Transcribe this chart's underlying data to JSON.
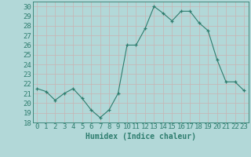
{
  "x": [
    0,
    1,
    2,
    3,
    4,
    5,
    6,
    7,
    8,
    9,
    10,
    11,
    12,
    13,
    14,
    15,
    16,
    17,
    18,
    19,
    20,
    21,
    22,
    23
  ],
  "y": [
    21.5,
    21.2,
    20.3,
    21.0,
    21.5,
    20.5,
    19.3,
    18.5,
    19.3,
    21.0,
    26.0,
    26.0,
    27.7,
    30.0,
    29.3,
    28.5,
    29.5,
    29.5,
    28.3,
    27.5,
    24.5,
    22.2,
    22.2,
    21.3
  ],
  "xlabel": "Humidex (Indice chaleur)",
  "ylim": [
    18,
    30.5
  ],
  "xlim": [
    -0.5,
    23.5
  ],
  "yticks": [
    18,
    19,
    20,
    21,
    22,
    23,
    24,
    25,
    26,
    27,
    28,
    29,
    30
  ],
  "xticks": [
    0,
    1,
    2,
    3,
    4,
    5,
    6,
    7,
    8,
    9,
    10,
    11,
    12,
    13,
    14,
    15,
    16,
    17,
    18,
    19,
    20,
    21,
    22,
    23
  ],
  "line_color": "#2e7d6e",
  "marker_color": "#2e7d6e",
  "bg_color": "#b2d8d8",
  "grid_color": "#c8b4b4",
  "text_color": "#2e7d6e",
  "xlabel_fontsize": 7,
  "tick_fontsize": 6.5
}
